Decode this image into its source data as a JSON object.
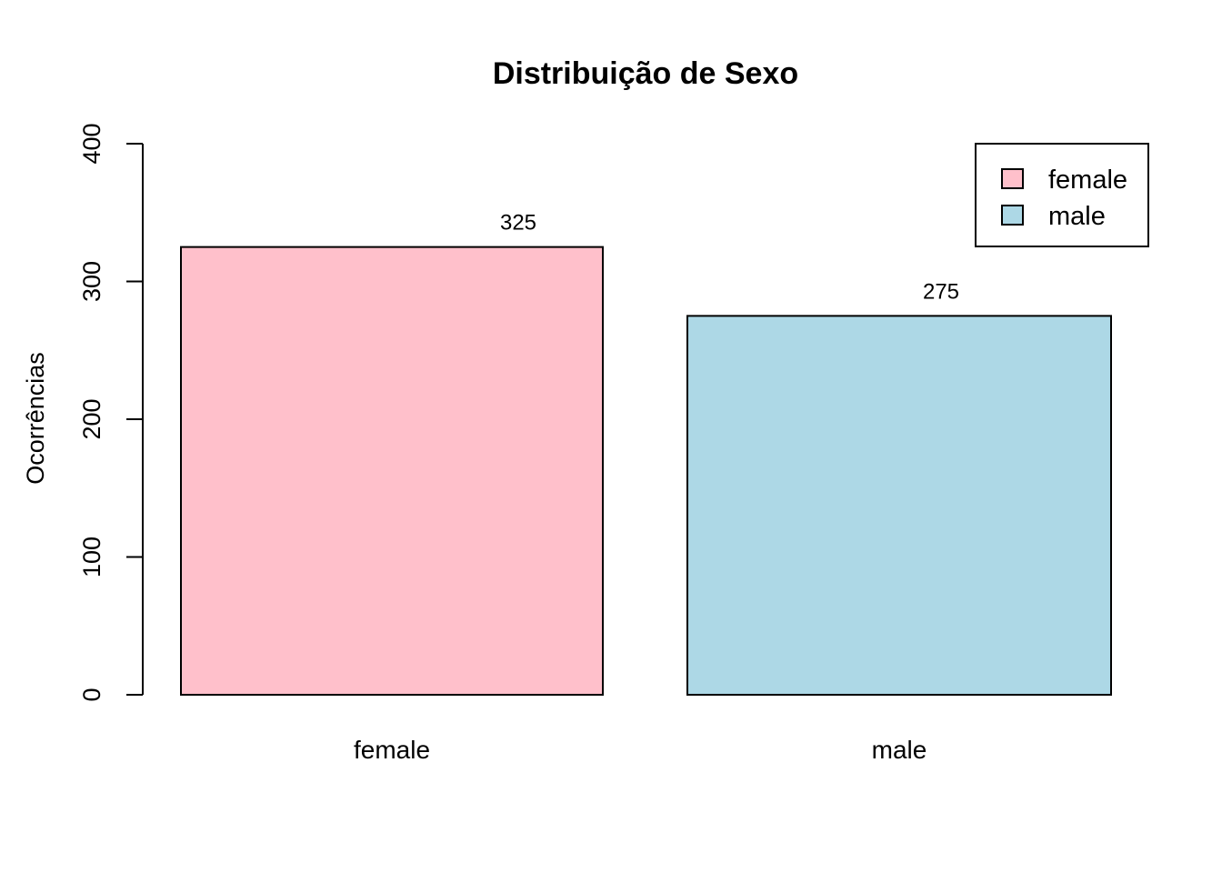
{
  "chart_data": {
    "type": "bar",
    "title": "Distribuição de Sexo",
    "xlabel": "",
    "ylabel": "Ocorrências",
    "categories": [
      "female",
      "male"
    ],
    "values": [
      325,
      275
    ],
    "colors": [
      "#FFC0CB",
      "#ADD8E6"
    ],
    "ylim": [
      0,
      400
    ],
    "yticks": [
      "0",
      "100",
      "200",
      "300",
      "400"
    ],
    "data_labels": [
      "325",
      "275"
    ],
    "legend": {
      "position": "top-right",
      "entries": [
        {
          "label": "female",
          "color": "#FFC0CB"
        },
        {
          "label": "male",
          "color": "#ADD8E6"
        }
      ]
    },
    "grid": false
  }
}
